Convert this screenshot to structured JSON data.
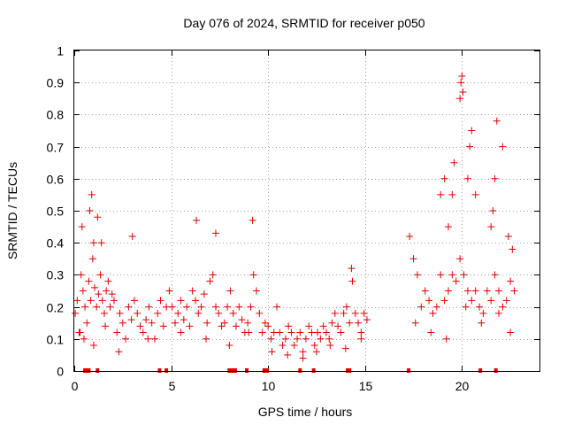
{
  "chart_data": {
    "type": "scatter",
    "title": "Day 076 of 2024, SRMTID for receiver p050",
    "xlabel": "GPS time / hours",
    "ylabel": "SRMTID / TECUs",
    "xlim": [
      0,
      24
    ],
    "ylim": [
      0,
      1
    ],
    "xticks": [
      0,
      5,
      10,
      15,
      20
    ],
    "xtick_labels": [
      "0",
      "5",
      "10",
      "15",
      "20"
    ],
    "yticks": [
      0,
      0.1,
      0.2,
      0.3,
      0.4,
      0.5,
      0.6,
      0.7,
      0.8,
      0.9,
      1
    ],
    "ytick_labels": [
      "0",
      "0.1",
      "0.2",
      "0.3",
      "0.4",
      "0.5",
      "0.6",
      "0.7",
      "0.8",
      "0.9",
      "1"
    ],
    "grid": true,
    "marker": "+",
    "color": "#e00000",
    "series": [
      {
        "name": "p050",
        "x": [
          0.05,
          0.15,
          0.25,
          0.35,
          0.45,
          0.55,
          0.65,
          0.75,
          0.85,
          0.95,
          1.05,
          1.15,
          1.25,
          1.35,
          1.45,
          1.55,
          1.65,
          1.75,
          1.85,
          1.95,
          2.05,
          2.2,
          2.35,
          2.5,
          2.65,
          2.8,
          2.95,
          3.1,
          3.25,
          3.4,
          3.55,
          3.7,
          3.85,
          4.0,
          4.15,
          4.3,
          4.45,
          4.6,
          4.75,
          4.9,
          5.05,
          5.2,
          5.35,
          5.5,
          5.65,
          5.8,
          5.95,
          6.1,
          6.25,
          6.4,
          6.55,
          6.7,
          6.85,
          7.0,
          7.15,
          7.3,
          7.45,
          7.6,
          7.75,
          7.9,
          8.05,
          8.2,
          8.35,
          8.5,
          8.65,
          8.8,
          8.95,
          9.1,
          9.25,
          9.4,
          9.55,
          9.7,
          9.85,
          10.0,
          10.15,
          10.3,
          10.45,
          10.6,
          10.75,
          10.9,
          11.05,
          11.2,
          11.35,
          11.5,
          11.65,
          11.8,
          11.95,
          12.1,
          12.25,
          12.4,
          12.55,
          12.7,
          12.85,
          13.0,
          13.15,
          13.3,
          13.45,
          13.6,
          13.75,
          13.9,
          14.05,
          14.2,
          14.35,
          14.5,
          14.65,
          14.8,
          14.95,
          15.1,
          0.4,
          0.8,
          0.9,
          1.0,
          1.2,
          1.4,
          3.0,
          6.3,
          7.3,
          9.2,
          14.3,
          17.3,
          17.5,
          17.7,
          17.9,
          18.1,
          18.3,
          18.5,
          18.7,
          18.9,
          19.1,
          19.3,
          19.5,
          19.7,
          19.9,
          20.1,
          20.3,
          20.5,
          20.7,
          20.9,
          21.1,
          21.3,
          21.5,
          21.7,
          21.9,
          22.1,
          22.3,
          22.5,
          22.7,
          18.9,
          19.1,
          19.3,
          19.5,
          19.6,
          19.9,
          19.95,
          20.0,
          20.05,
          20.3,
          20.4,
          20.5,
          20.7,
          21.5,
          21.6,
          21.7,
          21.8,
          22.1,
          22.4,
          22.6,
          0.3,
          0.5,
          1.0,
          1.6,
          2.3,
          3.8,
          5.5,
          6.8,
          8.0,
          9.0,
          10.2,
          11.0,
          11.8,
          12.5,
          13.2,
          14.0,
          14.8,
          17.6,
          18.4,
          19.2,
          20.2,
          21.0,
          21.9,
          22.5
        ],
        "y": [
          0.18,
          0.22,
          0.12,
          0.3,
          0.25,
          0.2,
          0.15,
          0.28,
          0.22,
          0.35,
          0.26,
          0.2,
          0.24,
          0.3,
          0.22,
          0.18,
          0.25,
          0.28,
          0.2,
          0.24,
          0.22,
          0.12,
          0.18,
          0.15,
          0.1,
          0.2,
          0.16,
          0.22,
          0.18,
          0.14,
          0.12,
          0.16,
          0.2,
          0.15,
          0.1,
          0.18,
          0.22,
          0.14,
          0.2,
          0.25,
          0.2,
          0.15,
          0.18,
          0.22,
          0.16,
          0.2,
          0.14,
          0.25,
          0.22,
          0.18,
          0.2,
          0.24,
          0.15,
          0.28,
          0.3,
          0.2,
          0.18,
          0.14,
          0.15,
          0.2,
          0.25,
          0.18,
          0.14,
          0.2,
          0.16,
          0.12,
          0.15,
          0.2,
          0.3,
          0.25,
          0.18,
          0.12,
          0.15,
          0.14,
          0.1,
          0.12,
          0.2,
          0.12,
          0.08,
          0.1,
          0.14,
          0.12,
          0.08,
          0.1,
          0.12,
          0.06,
          0.1,
          0.14,
          0.12,
          0.08,
          0.12,
          0.1,
          0.14,
          0.12,
          0.1,
          0.15,
          0.18,
          0.14,
          0.12,
          0.18,
          0.2,
          0.15,
          0.28,
          0.18,
          0.15,
          0.12,
          0.18,
          0.16,
          0.45,
          0.5,
          0.55,
          0.4,
          0.48,
          0.4,
          0.42,
          0.47,
          0.43,
          0.47,
          0.32,
          0.42,
          0.35,
          0.3,
          0.2,
          0.25,
          0.22,
          0.18,
          0.2,
          0.3,
          0.22,
          0.25,
          0.3,
          0.28,
          0.35,
          0.3,
          0.25,
          0.22,
          0.25,
          0.2,
          0.18,
          0.25,
          0.22,
          0.3,
          0.25,
          0.2,
          0.22,
          0.28,
          0.25,
          0.55,
          0.6,
          0.45,
          0.55,
          0.65,
          0.85,
          0.9,
          0.92,
          0.87,
          0.6,
          0.7,
          0.75,
          0.55,
          0.45,
          0.5,
          0.6,
          0.78,
          0.7,
          0.42,
          0.38,
          0.12,
          0.1,
          0.08,
          0.14,
          0.06,
          0.1,
          0.12,
          0.1,
          0.08,
          0.12,
          0.06,
          0.05,
          0.04,
          0.06,
          0.08,
          0.07,
          0.1,
          0.15,
          0.12,
          0.1,
          0.2,
          0.15,
          0.18,
          0.12
        ]
      }
    ],
    "zero_markers_x": [
      0.55,
      0.65,
      0.75,
      1.2,
      4.4,
      4.75,
      8.0,
      8.15,
      8.3,
      8.9,
      9.8,
      9.95,
      11.65,
      12.35,
      14.1,
      14.2,
      17.25,
      20.95,
      21.75
    ]
  }
}
